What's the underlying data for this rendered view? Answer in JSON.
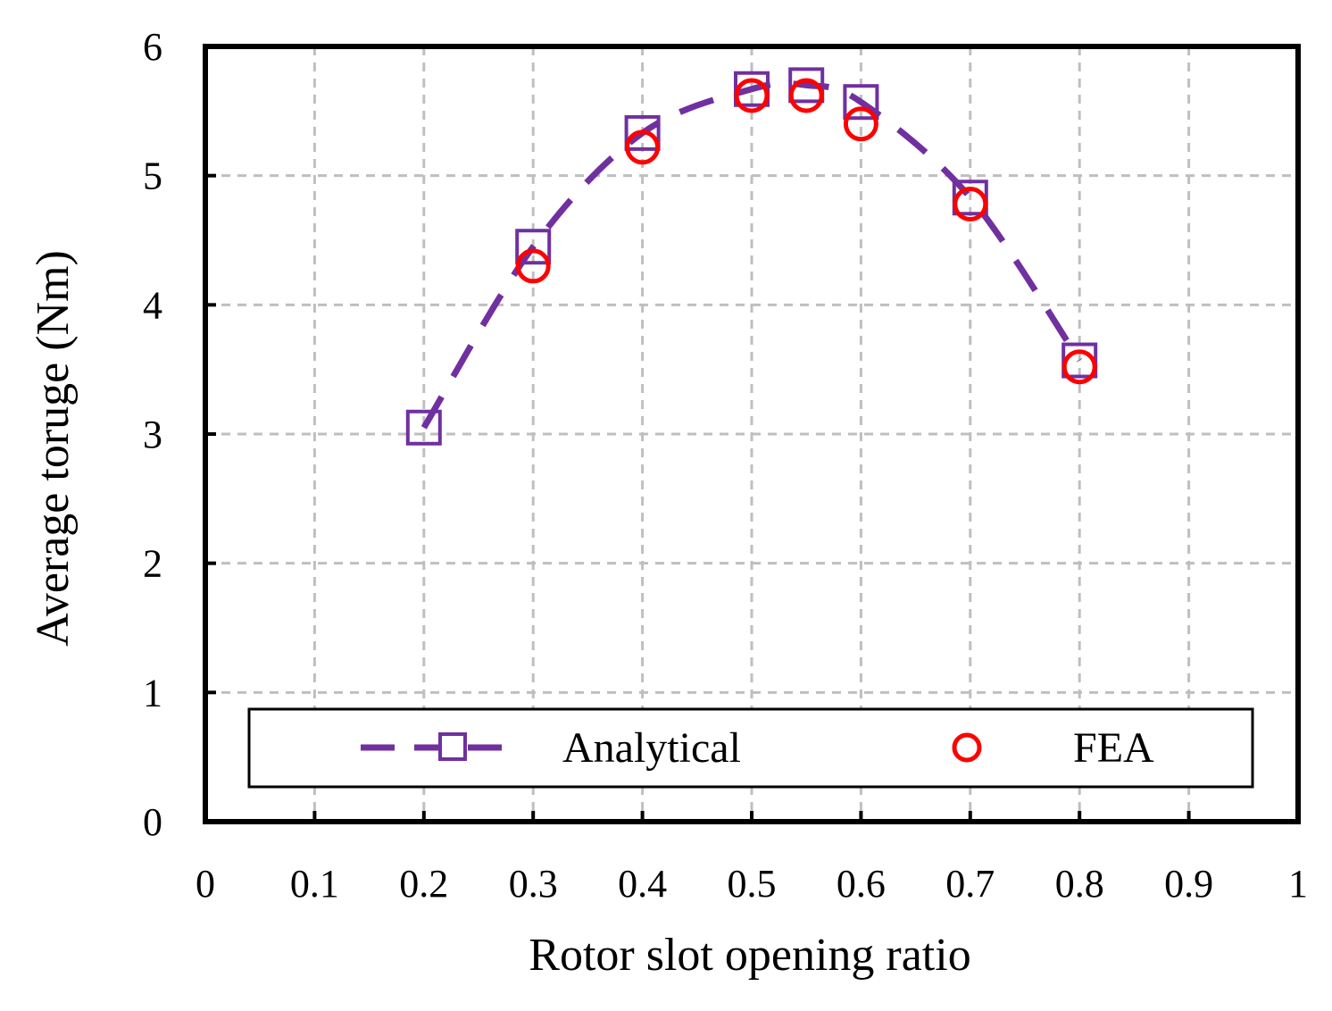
{
  "chart_data": {
    "type": "line",
    "title": "",
    "xlabel": "Rotor slot opening ratio",
    "ylabel": "Average toruge (Nm)",
    "xlim": [
      0,
      1
    ],
    "ylim": [
      0,
      6
    ],
    "x_ticks": [
      "0",
      "0.1",
      "0.2",
      "0.3",
      "0.4",
      "0.5",
      "0.6",
      "0.7",
      "0.8",
      "0.9",
      "1"
    ],
    "y_ticks": [
      "0",
      "1",
      "2",
      "3",
      "4",
      "5",
      "6"
    ],
    "grid": true,
    "legend_position": "bottom",
    "series": [
      {
        "name": "Analytical",
        "style": "dashed line with square markers",
        "color": "#7030A0",
        "x": [
          0.2,
          0.3,
          0.4,
          0.5,
          0.55,
          0.6,
          0.7,
          0.8
        ],
        "y": [
          3.05,
          4.45,
          5.33,
          5.67,
          5.7,
          5.57,
          4.83,
          3.57
        ]
      },
      {
        "name": "FEA",
        "style": "circle markers",
        "color": "#FF0000",
        "x": [
          0.3,
          0.4,
          0.5,
          0.55,
          0.6,
          0.7,
          0.8
        ],
        "y": [
          4.3,
          5.22,
          5.62,
          5.62,
          5.4,
          4.78,
          3.52
        ]
      }
    ]
  }
}
